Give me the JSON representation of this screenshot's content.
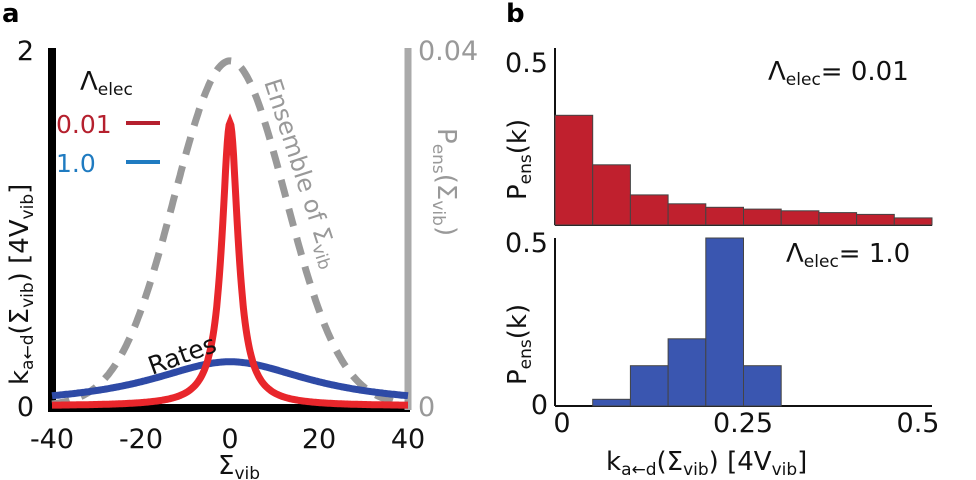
{
  "panels": {
    "a": "a",
    "b": "b"
  },
  "chart_data": [
    {
      "panel": "a",
      "type": "line",
      "xlabel": "Σvib",
      "xlim": [
        -40,
        40
      ],
      "ylim": [
        0,
        2
      ],
      "y2lim": [
        0,
        0.04
      ],
      "x_ticks": [
        "-40",
        "-20",
        "0",
        "20",
        "40"
      ],
      "y_ticks": [
        "0",
        "2"
      ],
      "y2_ticks": [
        "0",
        "0.04"
      ],
      "ylabel": {
        "main": "k",
        "sub": "a←d",
        "rest": "(Σ",
        "sub2": "vib",
        "end": ") [4V",
        "sub3": "vib",
        "close": "]"
      },
      "y2label": {
        "main": "P",
        "sub": "ens",
        "rest": "(Σ",
        "sub2": "vib",
        "end": ")"
      },
      "legend_title": {
        "main": "Λ",
        "sub": "elec"
      },
      "annotations": {
        "rates": "Rates",
        "ensemble": {
          "main": "Ensemble of Σ",
          "sub": "vib"
        }
      },
      "series": [
        {
          "name": "0.01",
          "color": "#e8262b",
          "style": "solid",
          "shape": "lorentzian",
          "center": 0,
          "gamma": 2.2,
          "peak": 1.6
        },
        {
          "name": "1.0",
          "color": "#2e4aa6",
          "style": "solid",
          "shape": "lorentzian",
          "center": 0,
          "gamma": 22,
          "peak": 0.25
        },
        {
          "name": "Ensemble",
          "color": "#999999",
          "style": "dashed",
          "shape": "gaussian",
          "center": 0,
          "sigma": 12.5,
          "peak": 0.039,
          "axis": "right"
        }
      ],
      "legend_colors": {
        "0.01": "#b5202e",
        "1.0": "#1f7bc1"
      }
    },
    {
      "panel": "b",
      "type": "bar",
      "subplots": [
        {
          "title": {
            "main": "Λ",
            "sub": "elec",
            "rest": "= 0.01"
          },
          "ylabel": {
            "main": "P",
            "sub": "ens",
            "rest": "(k)"
          },
          "color": "#c0202e",
          "ylim": [
            0,
            0.5
          ],
          "y_ticks": [
            "0.5"
          ],
          "bin_edges": [
            0,
            0.05,
            0.1,
            0.15,
            0.2,
            0.25,
            0.3,
            0.35,
            0.4,
            0.45,
            0.5
          ],
          "values": [
            0.31,
            0.17,
            0.085,
            0.06,
            0.05,
            0.045,
            0.04,
            0.035,
            0.03,
            0.02
          ]
        },
        {
          "title": {
            "main": "Λ",
            "sub": "elec",
            "rest": "= 1.0"
          },
          "ylabel": {
            "main": "P",
            "sub": "ens",
            "rest": "(k)"
          },
          "color": "#3a56b0",
          "ylim": [
            0,
            0.5
          ],
          "y_ticks": [
            "0.5",
            "0"
          ],
          "bin_edges": [
            0.05,
            0.1,
            0.15,
            0.2,
            0.25,
            0.3
          ],
          "values": [
            0.02,
            0.12,
            0.2,
            0.5,
            0.12
          ]
        }
      ],
      "x_ticks": [
        "0",
        "0.25",
        "0.5"
      ],
      "xlim": [
        0,
        0.5
      ],
      "xlabel": {
        "main": "k",
        "sub": "a←d",
        "rest": "(Σ",
        "sub2": "vib",
        "end": ") [4V",
        "sub3": "vib",
        "close": "]"
      }
    }
  ]
}
